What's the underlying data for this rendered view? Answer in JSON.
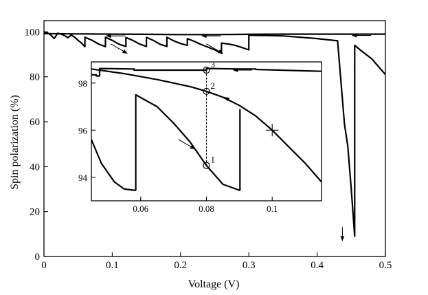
{
  "chart_data": [
    {
      "id": "main",
      "type": "line",
      "title": "",
      "xlabel": "Voltage (V)",
      "ylabel": "Spin polarization (%)",
      "xlim": [
        0,
        0.5
      ],
      "ylim": [
        0,
        105
      ],
      "xticks": [
        0,
        0.1,
        0.2,
        0.3,
        0.4,
        0.5
      ],
      "xtick_labels": [
        "0",
        "0.1",
        "0.2",
        "0.3",
        "0.4",
        "0.5"
      ],
      "yticks": [
        0,
        20,
        40,
        60,
        80,
        100
      ],
      "ytick_labels": [
        "0",
        "20",
        "40",
        "60",
        "80",
        "100"
      ],
      "grid": false,
      "series": [
        {
          "description": "upper (reverse sweep) branch",
          "x": [
            0.0,
            0.05,
            0.1,
            0.15,
            0.2,
            0.25,
            0.3,
            0.35,
            0.4,
            0.45,
            0.5
          ],
          "y": [
            99.2,
            99.1,
            99.0,
            98.9,
            98.8,
            98.8,
            98.9,
            99.0,
            99.0,
            99.0,
            99.0
          ]
        },
        {
          "description": "lower (forward sweep) sawtooth branch",
          "x": [
            0.0,
            0.005,
            0.01,
            0.015,
            0.02,
            0.025,
            0.03,
            0.035,
            0.04,
            0.045,
            0.05,
            0.055,
            0.06,
            0.06,
            0.07,
            0.08,
            0.09,
            0.09,
            0.1,
            0.11,
            0.12,
            0.12,
            0.13,
            0.14,
            0.15,
            0.15,
            0.16,
            0.17,
            0.18,
            0.18,
            0.19,
            0.2,
            0.21,
            0.21,
            0.22,
            0.23,
            0.24,
            0.25,
            0.26,
            0.26,
            0.27,
            0.28,
            0.29,
            0.3,
            0.3,
            0.35,
            0.4,
            0.43,
            0.44,
            0.445,
            0.45,
            0.455,
            0.455,
            0.465,
            0.48,
            0.5
          ],
          "y": [
            100,
            99.6,
            98.6,
            97.0,
            99.4,
            99.0,
            98.4,
            97.4,
            98.6,
            97.6,
            96.2,
            95.0,
            93.4,
            97.6,
            96.3,
            94.6,
            93.4,
            97.6,
            96.2,
            94.5,
            93.5,
            97.5,
            96.2,
            94.6,
            93.5,
            97.6,
            96.2,
            94.5,
            93.5,
            97.6,
            96.0,
            94.8,
            94.0,
            97.0,
            95.8,
            94.4,
            93.2,
            92.0,
            90.5,
            95.0,
            94.6,
            94.0,
            93.0,
            92.0,
            98.5,
            98.2,
            97.0,
            96.0,
            59.0,
            49.0,
            30.0,
            9.0,
            94.0,
            91.5,
            88.0,
            81.0
          ]
        }
      ],
      "annotations": [
        {
          "kind": "arrow",
          "direction": "left",
          "x": 0.105,
          "y": 98.2
        },
        {
          "kind": "arrow",
          "direction": "left",
          "x": 0.245,
          "y": 98.2
        },
        {
          "kind": "arrow",
          "direction": "left",
          "x": 0.465,
          "y": 98.4
        },
        {
          "kind": "arrow",
          "direction": "down-right",
          "x": 0.11,
          "y": 92.5
        },
        {
          "kind": "arrow",
          "direction": "down-right",
          "x": 0.25,
          "y": 92.5
        },
        {
          "kind": "arrow",
          "direction": "down",
          "x": 0.437,
          "y": 10.0
        }
      ]
    },
    {
      "id": "inset",
      "type": "line",
      "title": "",
      "xlabel": "",
      "ylabel": "",
      "xlim": [
        0.045,
        0.115
      ],
      "ylim": [
        93,
        98.9
      ],
      "xticks": [
        0.06,
        0.08,
        0.1
      ],
      "xtick_labels": [
        "0.06",
        "0.08",
        "0.1"
      ],
      "yticks": [
        94,
        96,
        98
      ],
      "ytick_labels": [
        "94",
        "96",
        "98"
      ],
      "grid": false,
      "series": [
        {
          "description": "upper branch (zoomed)",
          "x": [
            0.045,
            0.0465,
            0.0465,
            0.0475,
            0.0475,
            0.058,
            0.058,
            0.07,
            0.08,
            0.08,
            0.09,
            0.095,
            0.095,
            0.115
          ],
          "y": [
            98.35,
            98.35,
            98.3,
            98.3,
            98.62,
            98.6,
            98.55,
            98.55,
            98.55,
            98.62,
            98.6,
            98.6,
            98.58,
            98.5
          ]
        },
        {
          "description": "long upper branch from 0.115 back toward 0.045",
          "x": [
            0.045,
            0.055,
            0.065,
            0.075,
            0.08,
            0.085,
            0.09,
            0.095,
            0.1,
            0.105,
            0.11,
            0.115
          ],
          "y": [
            98.6,
            98.4,
            98.15,
            97.85,
            97.65,
            97.4,
            97.05,
            96.6,
            96.0,
            95.3,
            94.6,
            93.8
          ]
        },
        {
          "description": "lower sawtooth branch (zoomed)",
          "x": [
            0.045,
            0.048,
            0.052,
            0.055,
            0.058,
            0.0585,
            0.0585,
            0.065,
            0.07,
            0.075,
            0.08,
            0.085,
            0.09,
            0.0902,
            0.0902
          ],
          "y": [
            95.6,
            94.6,
            93.8,
            93.5,
            93.45,
            93.45,
            97.5,
            97.0,
            96.3,
            95.5,
            94.5,
            93.7,
            93.45,
            93.45,
            96.9
          ]
        }
      ],
      "markers": [
        {
          "label": "1",
          "x": 0.08,
          "y": 94.5
        },
        {
          "label": "2",
          "x": 0.08,
          "y": 97.65
        },
        {
          "label": "3",
          "x": 0.08,
          "y": 98.55
        }
      ],
      "plus_marker": {
        "x": 0.1,
        "y": 96.0
      },
      "annotations": [
        {
          "kind": "arrow",
          "direction": "left",
          "x": 0.091,
          "y": 98.55
        },
        {
          "kind": "arrow",
          "direction": "up-left",
          "x": 0.088,
          "y": 97.2
        },
        {
          "kind": "arrow",
          "direction": "down-right",
          "x": 0.074,
          "y": 95.4
        }
      ]
    }
  ]
}
